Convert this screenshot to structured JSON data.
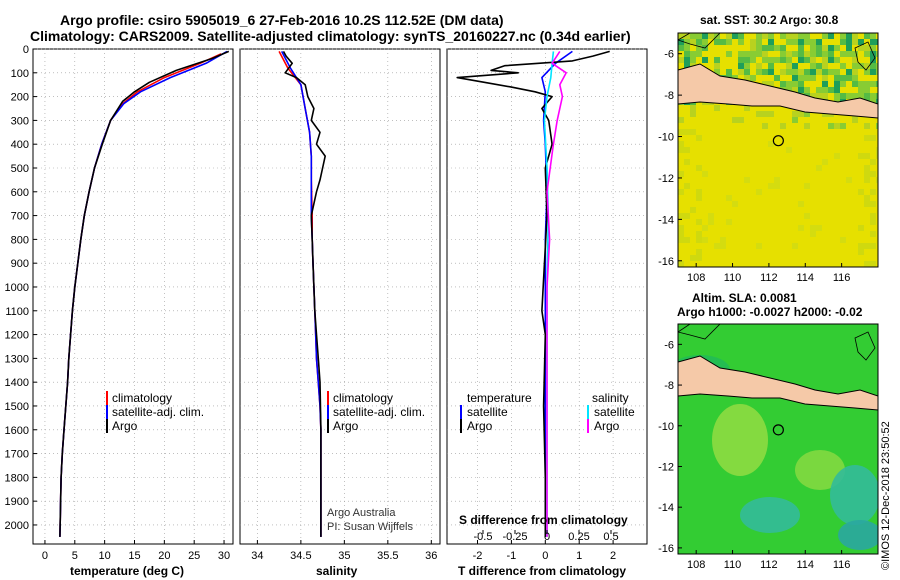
{
  "header": {
    "title_line1": "Argo profile: csiro 5905019_6 27-Feb-2016 10.2S 112.52E (DM data)",
    "title_line2": "Climatology: CARS2009. Satellite-adjusted climatology: synTS_20160227.nc (0.34d earlier)"
  },
  "colors": {
    "climatology": "#ff0000",
    "satellite": "#0000ff",
    "argo": "#000000",
    "satellite_s": "#00e5ff",
    "argo_s": "#ff00ff",
    "land": "#f5c9a8",
    "sst_bg": "#e6e000",
    "sla_bg": "#33cc33"
  },
  "chart_data": [
    {
      "type": "line",
      "id": "temperature",
      "xlabel": "temperature (deg C)",
      "xlim": [
        -2,
        31.5
      ],
      "ylim": [
        2080,
        0
      ],
      "xticks": [
        0,
        5,
        10,
        15,
        20,
        25,
        30
      ],
      "yticks": [
        0,
        100,
        200,
        300,
        400,
        500,
        600,
        700,
        800,
        900,
        1000,
        1100,
        1200,
        1300,
        1400,
        1500,
        1600,
        1700,
        1800,
        1900,
        2000
      ],
      "legend": [
        "climatology",
        "satellite-adj. clim.",
        "Argo"
      ],
      "series": [
        {
          "name": "climatology",
          "color": "#ff0000",
          "x": [
            29.5,
            26,
            20,
            15.5,
            13,
            11,
            9.5,
            8.3,
            7.4,
            6.6,
            6,
            5.5,
            5,
            4.6,
            4.3,
            4,
            3.8,
            3.5,
            3.2,
            2.9,
            2.7,
            2.5
          ],
          "y": [
            20,
            60,
            120,
            180,
            230,
            300,
            400,
            500,
            600,
            700,
            800,
            900,
            1000,
            1100,
            1200,
            1300,
            1400,
            1500,
            1600,
            1700,
            1800,
            2050
          ]
        },
        {
          "name": "satellite-adj. clim.",
          "color": "#0000ff",
          "x": [
            30.5,
            27,
            21,
            16,
            13.2,
            11,
            9.5,
            8.3,
            7.4,
            6.6,
            6,
            5.5,
            5,
            4.6,
            4.3,
            4,
            3.8,
            3.5,
            3.2,
            2.9,
            2.7,
            2.5
          ],
          "y": [
            10,
            60,
            120,
            180,
            230,
            300,
            400,
            500,
            600,
            700,
            800,
            900,
            1000,
            1100,
            1200,
            1300,
            1400,
            1500,
            1600,
            1700,
            1800,
            2050
          ]
        },
        {
          "name": "Argo",
          "color": "#000000",
          "x": [
            30.8,
            28,
            22,
            17.5,
            15,
            13,
            11,
            9.6,
            8.3,
            7.4,
            6.6,
            6,
            5.5,
            5,
            4.6,
            4.3,
            4,
            3.8,
            3.5,
            3.2,
            2.9,
            2.7,
            2.5
          ],
          "y": [
            10,
            40,
            90,
            140,
            180,
            220,
            300,
            400,
            500,
            600,
            700,
            800,
            900,
            1000,
            1100,
            1200,
            1300,
            1400,
            1500,
            1600,
            1700,
            1800,
            2050
          ]
        }
      ]
    },
    {
      "type": "line",
      "id": "salinity",
      "xlabel": "salinity",
      "xlim": [
        33.8,
        36.1
      ],
      "ylim": [
        2080,
        0
      ],
      "xticks": [
        34,
        34.5,
        35,
        35.5,
        36
      ],
      "legend": [
        "climatology",
        "satellite-adj. clim.",
        "Argo"
      ],
      "credit_line1": "Argo Australia",
      "credit_line2": "PI: Susan Wijffels",
      "series": [
        {
          "name": "climatology",
          "color": "#ff0000",
          "x": [
            34.25,
            34.35,
            34.5,
            34.55,
            34.6,
            34.62,
            34.62,
            34.63,
            34.63,
            34.64,
            34.65,
            34.67,
            34.68,
            34.7,
            34.72,
            34.73,
            34.73,
            34.73
          ],
          "y": [
            10,
            80,
            150,
            250,
            350,
            450,
            550,
            700,
            800,
            900,
            1000,
            1200,
            1300,
            1400,
            1500,
            1600,
            1800,
            2050
          ]
        },
        {
          "name": "satellite-adj. clim.",
          "color": "#0000ff",
          "x": [
            34.28,
            34.38,
            34.5,
            34.55,
            34.6,
            34.62,
            34.62,
            34.62,
            34.63,
            34.64,
            34.65,
            34.67,
            34.68,
            34.7,
            34.72,
            34.73,
            34.73,
            34.73
          ],
          "y": [
            10,
            80,
            150,
            250,
            350,
            450,
            550,
            700,
            800,
            900,
            1000,
            1200,
            1300,
            1400,
            1500,
            1600,
            1800,
            2050
          ]
        },
        {
          "name": "Argo",
          "color": "#000000",
          "x": [
            34.3,
            34.33,
            34.4,
            34.32,
            34.45,
            34.55,
            34.58,
            34.65,
            34.62,
            34.72,
            34.68,
            34.78,
            34.75,
            34.72,
            34.68,
            34.65,
            34.62,
            34.63,
            34.64,
            34.65,
            34.66,
            34.68,
            34.7,
            34.72,
            34.73,
            34.73
          ],
          "y": [
            10,
            30,
            60,
            100,
            120,
            150,
            200,
            250,
            300,
            350,
            400,
            450,
            500,
            550,
            600,
            650,
            700,
            800,
            900,
            1000,
            1100,
            1200,
            1300,
            1400,
            1600,
            2050
          ]
        }
      ]
    },
    {
      "type": "line",
      "id": "difference",
      "xlabel": "T difference from climatology",
      "xlabel_top": "S difference from climatology",
      "xlim": [
        -2.9,
        3.0
      ],
      "ylim": [
        2080,
        0
      ],
      "xticks": [
        -2,
        -1,
        0,
        1,
        2
      ],
      "top_ticks": [
        -0.5,
        -0.25,
        0,
        0.25,
        0.5
      ],
      "top_tick_labels": [
        "-0.5",
        "-0.25",
        "0",
        "0.25",
        "0.5"
      ],
      "legend_temperature": "temperature",
      "legend_salinity": "salinity",
      "legend_items": [
        "satellite",
        "Argo"
      ],
      "series": [
        {
          "name": "T satellite",
          "color": "#0000ff",
          "x": [
            0.8,
            0.3,
            -0.1,
            0.0,
            -0.05,
            0.0,
            0.05,
            0.0,
            0.0,
            0.0,
            0.0,
            0.0
          ],
          "y": [
            10,
            60,
            120,
            180,
            300,
            400,
            600,
            800,
            1000,
            1400,
            1800,
            2050
          ]
        },
        {
          "name": "T Argo",
          "color": "#000000",
          "x": [
            1.9,
            1.4,
            0.8,
            -0.2,
            -1.2,
            -1.6,
            -0.8,
            -2.6,
            -1.8,
            -1.0,
            -0.3,
            0.2,
            -0.1,
            0.1,
            0.2,
            0.0,
            0.05,
            -0.1,
            0.0,
            -0.05,
            0.0,
            0.0
          ],
          "y": [
            10,
            30,
            50,
            60,
            70,
            90,
            100,
            120,
            140,
            160,
            180,
            200,
            250,
            300,
            400,
            500,
            700,
            1100,
            1200,
            1500,
            1800,
            2050
          ]
        },
        {
          "name": "S satellite",
          "color": "#00e5ff",
          "x": [
            0.05,
            0.04,
            0.03,
            0.0,
            -0.02,
            0.0,
            0.01,
            0.0,
            0.0,
            0.0,
            0.0
          ],
          "y": [
            10,
            60,
            120,
            200,
            300,
            500,
            700,
            1000,
            1400,
            1800,
            2050
          ]
        },
        {
          "name": "S Argo",
          "color": "#ff00ff",
          "x": [
            0.1,
            0.04,
            0.15,
            0.1,
            0.12,
            0.08,
            0.05,
            0.0,
            0.02,
            0.0,
            0.0,
            0.0
          ],
          "y": [
            10,
            60,
            100,
            150,
            200,
            300,
            400,
            600,
            800,
            1000,
            1400,
            2050
          ]
        }
      ]
    },
    {
      "type": "heatmap",
      "id": "sst_map",
      "title": "sat. SST: 30.2 Argo: 30.8",
      "xlim": [
        107,
        118
      ],
      "ylim": [
        -16.3,
        -5
      ],
      "xticks": [
        108,
        110,
        112,
        114,
        116
      ],
      "yticks": [
        -6,
        -8,
        -10,
        -12,
        -14,
        -16
      ],
      "argo_position": [
        112.52,
        -10.2
      ]
    },
    {
      "type": "heatmap",
      "id": "sla_map",
      "title_line1": "Altim. SLA: 0.0081",
      "title_line2": "Argo h1000: -0.0027 h2000: -0.02",
      "xlim": [
        107,
        118
      ],
      "ylim": [
        -16.3,
        -5
      ],
      "xticks": [
        108,
        110,
        112,
        114,
        116
      ],
      "yticks": [
        -6,
        -8,
        -10,
        -12,
        -14,
        -16
      ],
      "argo_position": [
        112.52,
        -10.2
      ]
    }
  ],
  "footer": {
    "credit": "©IMOS 12-Dec-2018 23:50:52"
  }
}
